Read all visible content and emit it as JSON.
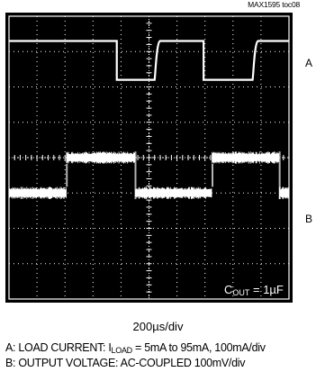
{
  "figure_id": "MAX1595 toc08",
  "chart_data": {
    "type": "line",
    "grid": true,
    "divisions": {
      "x": 10,
      "y": 8
    },
    "x_scale": "200µs/div",
    "series": [
      {
        "name": "A",
        "label": "A: LOAD CURRENT: I_LOAD = 5mA to 95mA, 100mA/div",
        "x_div": [
          0,
          3.85,
          3.85,
          5.2,
          5.2,
          6.95,
          6.95,
          8.7,
          8.7,
          10
        ],
        "y_div": [
          7.3,
          7.3,
          6.2,
          6.2,
          7.3,
          7.3,
          6.2,
          6.2,
          7.3,
          7.3
        ]
      },
      {
        "name": "B",
        "label": "B: OUTPUT VOLTAGE: AC-COUPLED 100mV/div",
        "x_div": [
          0,
          2.05,
          2.05,
          4.5,
          4.5,
          7.25,
          7.25,
          9.65,
          9.65,
          10
        ],
        "y_div": [
          3.0,
          3.0,
          4.0,
          4.0,
          3.0,
          3.0,
          4.0,
          4.0,
          3.0,
          3.0
        ],
        "noise_div": 0.35
      }
    ],
    "annotations": [
      "C_OUT = 1µF"
    ]
  },
  "labels": {
    "trace_a": "A",
    "trace_b": "B",
    "cout_pre": "C",
    "cout_sub": "OUT",
    "cout_post": " = 1µF",
    "x_scale": "200µs/div",
    "caption_a_pre": "A: LOAD CURRENT: I",
    "caption_a_sub": "LOAD",
    "caption_a_post": " = 5mA to 95mA, 100mA/div",
    "caption_b": "B: OUTPUT VOLTAGE: AC-COUPLED 100mV/div"
  }
}
